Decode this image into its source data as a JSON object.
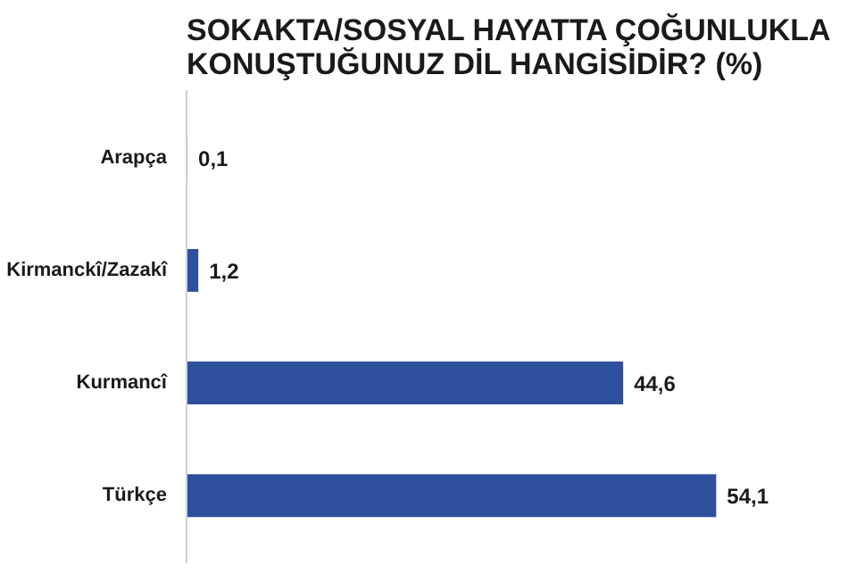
{
  "chart_data": {
    "type": "bar",
    "orientation": "horizontal",
    "title": "SOKAKTA/SOSYAL HAYATTA ÇOĞUNLUKLA\nKONUŞTUĞUNUZ DİL HANGİSİDİR? (%)",
    "categories": [
      "Arapça",
      "Kirmanckî/Zazakî",
      "Kurmancî",
      "Türkçe"
    ],
    "values": [
      0.1,
      1.2,
      44.6,
      54.1
    ],
    "value_labels": [
      "0,1",
      "1,2",
      "44,6",
      "54,1"
    ],
    "color": "#2e4f9c",
    "grid": false
  }
}
